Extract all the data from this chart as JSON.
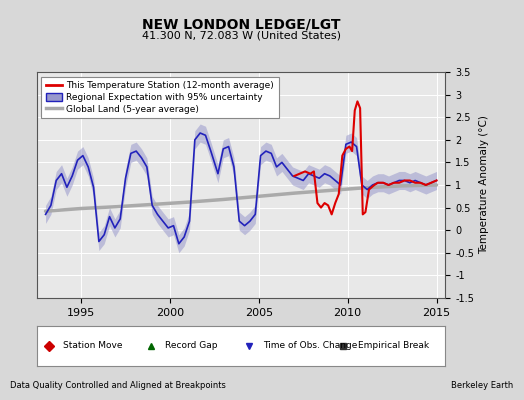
{
  "title": "NEW LONDON LEDGE/LGT",
  "subtitle": "41.300 N, 72.083 W (United States)",
  "xlabel_left": "Data Quality Controlled and Aligned at Breakpoints",
  "xlabel_right": "Berkeley Earth",
  "ylabel": "Temperature Anomaly (°C)",
  "xlim": [
    1992.5,
    2015.5
  ],
  "ylim": [
    -1.5,
    3.5
  ],
  "yticks": [
    -1.5,
    -1.0,
    -0.5,
    0.0,
    0.5,
    1.0,
    1.5,
    2.0,
    2.5,
    3.0,
    3.5
  ],
  "xticks": [
    1995,
    2000,
    2005,
    2010,
    2015
  ],
  "bg_color": "#d8d8d8",
  "plot_bg_color": "#e8e8e8",
  "red_line_color": "#dd0000",
  "blue_line_color": "#2222bb",
  "blue_fill_color": "#9999cc",
  "gray_line_color": "#aaaaaa",
  "legend_items": [
    "This Temperature Station (12-month average)",
    "Regional Expectation with 95% uncertainty",
    "Global Land (5-year average)"
  ],
  "marker_legend": [
    {
      "label": "Station Move",
      "color": "#cc0000",
      "marker": "D"
    },
    {
      "label": "Record Gap",
      "color": "#006600",
      "marker": "^"
    },
    {
      "label": "Time of Obs. Change",
      "color": "#2222bb",
      "marker": "v"
    },
    {
      "label": "Empirical Break",
      "color": "#333333",
      "marker": "s"
    }
  ],
  "blue_x": [
    1993.0,
    1993.3,
    1993.6,
    1993.9,
    1994.2,
    1994.5,
    1994.8,
    1995.1,
    1995.4,
    1995.7,
    1996.0,
    1996.3,
    1996.6,
    1996.9,
    1997.2,
    1997.5,
    1997.8,
    1998.1,
    1998.4,
    1998.7,
    1999.0,
    1999.3,
    1999.6,
    1999.9,
    2000.2,
    2000.5,
    2000.8,
    2001.1,
    2001.4,
    2001.7,
    2002.0,
    2002.3,
    2002.5,
    2002.7,
    2003.0,
    2003.3,
    2003.6,
    2003.9,
    2004.2,
    2004.5,
    2004.8,
    2005.1,
    2005.4,
    2005.7,
    2006.0,
    2006.3,
    2006.6,
    2006.9,
    2007.2,
    2007.5,
    2007.8,
    2008.1,
    2008.4,
    2008.7,
    2009.0,
    2009.3,
    2009.6,
    2009.9,
    2010.2,
    2010.5,
    2010.8,
    2011.1,
    2011.4,
    2011.7,
    2012.0,
    2012.3,
    2012.6,
    2012.9,
    2013.2,
    2013.5,
    2013.8,
    2014.1,
    2014.4,
    2014.7,
    2015.0
  ],
  "blue_y": [
    0.35,
    0.55,
    1.1,
    1.25,
    0.95,
    1.2,
    1.55,
    1.65,
    1.4,
    0.95,
    -0.25,
    -0.1,
    0.3,
    0.05,
    0.25,
    1.15,
    1.7,
    1.75,
    1.6,
    1.4,
    0.55,
    0.35,
    0.2,
    0.05,
    0.1,
    -0.3,
    -0.15,
    0.2,
    2.0,
    2.15,
    2.1,
    1.75,
    1.5,
    1.25,
    1.8,
    1.85,
    1.4,
    0.2,
    0.1,
    0.2,
    0.35,
    1.65,
    1.75,
    1.7,
    1.4,
    1.5,
    1.35,
    1.2,
    1.15,
    1.1,
    1.25,
    1.2,
    1.15,
    1.25,
    1.2,
    1.1,
    1.0,
    1.9,
    1.95,
    1.85,
    1.0,
    0.9,
    1.0,
    1.05,
    1.05,
    1.0,
    1.05,
    1.1,
    1.1,
    1.05,
    1.1,
    1.05,
    1.0,
    1.05,
    1.1
  ],
  "blue_unc": 0.2,
  "red_x": [
    2007.0,
    2007.3,
    2007.6,
    2007.9,
    2008.1,
    2008.3,
    2008.5,
    2008.7,
    2008.9,
    2009.1,
    2009.3,
    2009.5,
    2009.7,
    2009.9,
    2010.1,
    2010.25,
    2010.4,
    2010.55,
    2010.7,
    2010.85,
    2011.0,
    2011.2,
    2011.5,
    2011.7,
    2012.0,
    2012.3,
    2012.6,
    2012.9,
    2013.2,
    2013.5,
    2013.8,
    2014.1,
    2014.4,
    2014.7,
    2015.0
  ],
  "red_y": [
    1.2,
    1.25,
    1.3,
    1.25,
    1.3,
    0.6,
    0.5,
    0.6,
    0.55,
    0.35,
    0.6,
    0.8,
    1.65,
    1.8,
    1.85,
    1.75,
    2.65,
    2.85,
    2.7,
    0.35,
    0.4,
    0.9,
    1.0,
    1.05,
    1.05,
    1.0,
    1.05,
    1.05,
    1.1,
    1.1,
    1.05,
    1.05,
    1.0,
    1.05,
    1.1
  ],
  "gray_x": [
    1993,
    1995,
    1997,
    1999,
    2001,
    2003,
    2005,
    2007,
    2009,
    2011,
    2013,
    2015
  ],
  "gray_y": [
    0.42,
    0.48,
    0.52,
    0.57,
    0.62,
    0.68,
    0.75,
    0.82,
    0.88,
    0.94,
    0.98,
    1.0
  ]
}
